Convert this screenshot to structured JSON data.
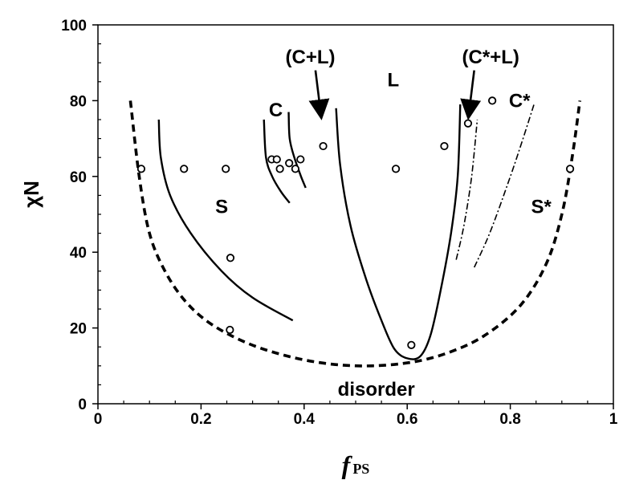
{
  "chart_data": {
    "type": "scatter",
    "title": "",
    "xlabel_main": "f",
    "xlabel_sub": "PS",
    "ylabel": "χN",
    "xlim": [
      0,
      1
    ],
    "ylim": [
      0,
      100
    ],
    "x_ticks": [
      "0",
      "0.2",
      "0.4",
      "0.6",
      "0.8",
      "1"
    ],
    "y_ticks": [
      "0",
      "20",
      "40",
      "60",
      "80",
      "100"
    ],
    "x_tick_values": [
      0,
      0.2,
      0.4,
      0.6,
      0.8,
      1
    ],
    "y_tick_values": [
      0,
      20,
      40,
      60,
      80,
      100
    ],
    "grid": false,
    "points": [
      [
        0.084,
        62
      ],
      [
        0.167,
        62
      ],
      [
        0.248,
        62
      ],
      [
        0.257,
        38.5
      ],
      [
        0.256,
        19.5
      ],
      [
        0.337,
        64.5
      ],
      [
        0.347,
        64.5
      ],
      [
        0.353,
        62
      ],
      [
        0.371,
        63.5
      ],
      [
        0.383,
        62
      ],
      [
        0.393,
        64.5
      ],
      [
        0.437,
        68
      ],
      [
        0.578,
        62
      ],
      [
        0.608,
        15.5
      ],
      [
        0.672,
        68
      ],
      [
        0.718,
        74
      ],
      [
        0.765,
        80
      ],
      [
        0.916,
        62
      ]
    ],
    "boundaries": {
      "disorder_spinodal": {
        "style": "dashed",
        "points": [
          [
            0.063,
            80
          ],
          [
            0.08,
            60
          ],
          [
            0.1,
            45
          ],
          [
            0.13,
            35
          ],
          [
            0.17,
            27
          ],
          [
            0.22,
            21
          ],
          [
            0.29,
            16
          ],
          [
            0.37,
            12.5
          ],
          [
            0.45,
            10.5
          ],
          [
            0.53,
            10
          ],
          [
            0.61,
            11
          ],
          [
            0.68,
            13.5
          ],
          [
            0.75,
            18
          ],
          [
            0.82,
            26
          ],
          [
            0.87,
            37
          ],
          [
            0.9,
            50
          ],
          [
            0.92,
            65
          ],
          [
            0.935,
            80
          ]
        ]
      },
      "S_C": {
        "style": "solid",
        "points": [
          [
            0.118,
            75
          ],
          [
            0.122,
            65
          ],
          [
            0.14,
            55
          ],
          [
            0.18,
            45
          ],
          [
            0.24,
            35
          ],
          [
            0.3,
            28
          ],
          [
            0.378,
            22
          ]
        ]
      },
      "C_left_1": {
        "style": "solid",
        "points": [
          [
            0.322,
            75
          ],
          [
            0.326,
            65
          ],
          [
            0.338,
            60
          ],
          [
            0.355,
            56
          ],
          [
            0.372,
            53
          ]
        ]
      },
      "C_left_2": {
        "style": "solid",
        "points": [
          [
            0.37,
            77
          ],
          [
            0.372,
            70
          ],
          [
            0.381,
            65
          ],
          [
            0.394,
            60
          ],
          [
            0.403,
            57
          ]
        ]
      },
      "L_envelope": {
        "style": "solid",
        "points": [
          [
            0.462,
            78
          ],
          [
            0.47,
            63
          ],
          [
            0.49,
            47
          ],
          [
            0.52,
            33
          ],
          [
            0.55,
            22
          ],
          [
            0.575,
            14.5
          ],
          [
            0.6,
            12
          ],
          [
            0.625,
            12.5
          ],
          [
            0.645,
            18
          ],
          [
            0.665,
            30
          ],
          [
            0.685,
            45
          ],
          [
            0.698,
            60
          ],
          [
            0.703,
            79
          ]
        ]
      },
      "C_star_1": {
        "style": "dashdot",
        "points": [
          [
            0.695,
            38
          ],
          [
            0.71,
            47
          ],
          [
            0.725,
            60
          ],
          [
            0.736,
            75
          ]
        ]
      },
      "C_star_2": {
        "style": "dashdot",
        "points": [
          [
            0.73,
            36
          ],
          [
            0.76,
            45
          ],
          [
            0.795,
            58
          ],
          [
            0.82,
            68
          ],
          [
            0.846,
            79
          ]
        ]
      }
    },
    "annotations": [
      {
        "text": "S",
        "x": 0.24,
        "y": 52
      },
      {
        "text": "C",
        "x": 0.345,
        "y": 77.5
      },
      {
        "text": "L",
        "x": 0.573,
        "y": 85.5
      },
      {
        "text": "C*",
        "x": 0.818,
        "y": 80
      },
      {
        "text": "S*",
        "x": 0.86,
        "y": 52
      },
      {
        "text": "disorder",
        "x": 0.54,
        "y": 3.8
      },
      {
        "text": "(C+L)",
        "x": 0.412,
        "y": 91.5
      },
      {
        "text": "(C*+L)",
        "x": 0.762,
        "y": 91.5
      }
    ],
    "arrows": [
      {
        "from": [
          0.422,
          88
        ],
        "to": [
          0.432,
          77
        ]
      },
      {
        "from": [
          0.73,
          88
        ],
        "to": [
          0.72,
          77
        ]
      }
    ]
  }
}
